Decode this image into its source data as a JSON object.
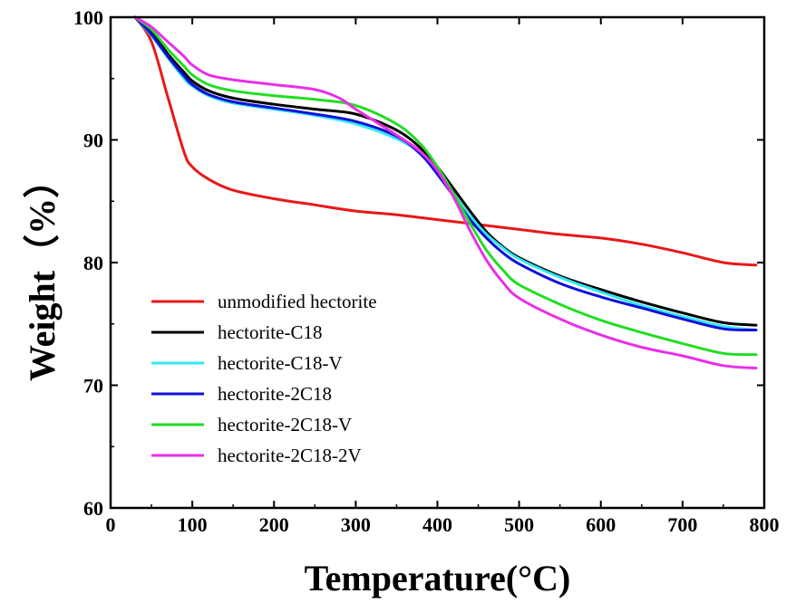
{
  "chart_data": {
    "type": "line",
    "title": "",
    "xlabel": "Temperature(°C)",
    "ylabel": "Weight（%）",
    "xlim": [
      0,
      800
    ],
    "ylim": [
      60,
      100
    ],
    "x_ticks": [
      0,
      100,
      200,
      300,
      400,
      500,
      600,
      700,
      800
    ],
    "y_ticks": [
      60,
      70,
      80,
      90,
      100
    ],
    "grid": false,
    "legend_position": "bottom-left",
    "series": [
      {
        "name": "unmodified hectorite",
        "color": "#e81818",
        "points": [
          [
            30,
            100
          ],
          [
            50,
            98
          ],
          [
            70,
            93.5
          ],
          [
            90,
            89
          ],
          [
            100,
            87.8
          ],
          [
            120,
            86.8
          ],
          [
            150,
            85.9
          ],
          [
            200,
            85.2
          ],
          [
            250,
            84.7
          ],
          [
            300,
            84.2
          ],
          [
            350,
            83.9
          ],
          [
            400,
            83.5
          ],
          [
            450,
            83.1
          ],
          [
            500,
            82.7
          ],
          [
            550,
            82.3
          ],
          [
            600,
            82
          ],
          [
            650,
            81.5
          ],
          [
            700,
            80.8
          ],
          [
            750,
            80
          ],
          [
            790,
            79.8
          ]
        ]
      },
      {
        "name": "hectorite-C18",
        "color": "#000000",
        "points": [
          [
            30,
            100
          ],
          [
            50,
            98.8
          ],
          [
            70,
            97
          ],
          [
            90,
            95.5
          ],
          [
            100,
            94.8
          ],
          [
            120,
            94
          ],
          [
            150,
            93.4
          ],
          [
            200,
            92.9
          ],
          [
            250,
            92.5
          ],
          [
            300,
            92.1
          ],
          [
            350,
            90.8
          ],
          [
            380,
            89.3
          ],
          [
            400,
            87.8
          ],
          [
            420,
            86
          ],
          [
            440,
            84.2
          ],
          [
            460,
            82.5
          ],
          [
            480,
            81.3
          ],
          [
            500,
            80.4
          ],
          [
            550,
            78.9
          ],
          [
            600,
            77.8
          ],
          [
            650,
            76.8
          ],
          [
            700,
            75.9
          ],
          [
            750,
            75.1
          ],
          [
            790,
            74.9
          ]
        ]
      },
      {
        "name": "hectorite-C18-V",
        "color": "#33e8f2",
        "points": [
          [
            30,
            100
          ],
          [
            50,
            98.5
          ],
          [
            70,
            96.7
          ],
          [
            90,
            95
          ],
          [
            100,
            94.4
          ],
          [
            120,
            93.6
          ],
          [
            150,
            93
          ],
          [
            200,
            92.5
          ],
          [
            250,
            92
          ],
          [
            300,
            91.3
          ],
          [
            350,
            90.1
          ],
          [
            380,
            88.9
          ],
          [
            400,
            87.4
          ],
          [
            420,
            85.6
          ],
          [
            440,
            83.8
          ],
          [
            460,
            82.3
          ],
          [
            480,
            81.2
          ],
          [
            500,
            80.3
          ],
          [
            550,
            78.8
          ],
          [
            600,
            77.6
          ],
          [
            650,
            76.5
          ],
          [
            700,
            75.6
          ],
          [
            750,
            74.8
          ],
          [
            790,
            74.5
          ]
        ]
      },
      {
        "name": "hectorite-2C18",
        "color": "#1010d8",
        "points": [
          [
            30,
            100
          ],
          [
            50,
            98.6
          ],
          [
            70,
            96.8
          ],
          [
            90,
            95.2
          ],
          [
            100,
            94.5
          ],
          [
            120,
            93.7
          ],
          [
            150,
            93.1
          ],
          [
            200,
            92.6
          ],
          [
            250,
            92.1
          ],
          [
            300,
            91.5
          ],
          [
            350,
            90.3
          ],
          [
            380,
            88.8
          ],
          [
            400,
            87.2
          ],
          [
            420,
            85.4
          ],
          [
            440,
            83.5
          ],
          [
            460,
            82
          ],
          [
            480,
            80.8
          ],
          [
            500,
            79.9
          ],
          [
            550,
            78.3
          ],
          [
            600,
            77.2
          ],
          [
            650,
            76.3
          ],
          [
            700,
            75.4
          ],
          [
            750,
            74.6
          ],
          [
            790,
            74.5
          ]
        ]
      },
      {
        "name": "hectorite-2C18-V",
        "color": "#22dd22",
        "points": [
          [
            30,
            100
          ],
          [
            50,
            99
          ],
          [
            70,
            97.4
          ],
          [
            90,
            96
          ],
          [
            100,
            95.3
          ],
          [
            120,
            94.5
          ],
          [
            150,
            94
          ],
          [
            200,
            93.6
          ],
          [
            250,
            93.3
          ],
          [
            300,
            92.8
          ],
          [
            350,
            91.3
          ],
          [
            380,
            89.6
          ],
          [
            400,
            87.8
          ],
          [
            420,
            85.6
          ],
          [
            440,
            83.2
          ],
          [
            460,
            81
          ],
          [
            480,
            79.4
          ],
          [
            500,
            78.2
          ],
          [
            550,
            76.6
          ],
          [
            600,
            75.3
          ],
          [
            650,
            74.3
          ],
          [
            700,
            73.4
          ],
          [
            750,
            72.6
          ],
          [
            790,
            72.5
          ]
        ]
      },
      {
        "name": "hectorite-2C18-2V",
        "color": "#e830e8",
        "points": [
          [
            30,
            100
          ],
          [
            50,
            99.2
          ],
          [
            70,
            98
          ],
          [
            90,
            96.8
          ],
          [
            100,
            96.1
          ],
          [
            120,
            95.3
          ],
          [
            150,
            94.9
          ],
          [
            200,
            94.5
          ],
          [
            250,
            94.1
          ],
          [
            280,
            93.4
          ],
          [
            300,
            92.5
          ],
          [
            350,
            90.4
          ],
          [
            380,
            89
          ],
          [
            400,
            87.5
          ],
          [
            420,
            85.3
          ],
          [
            440,
            82.6
          ],
          [
            460,
            80.2
          ],
          [
            480,
            78.4
          ],
          [
            500,
            77.1
          ],
          [
            550,
            75.4
          ],
          [
            600,
            74.1
          ],
          [
            650,
            73.1
          ],
          [
            700,
            72.4
          ],
          [
            750,
            71.6
          ],
          [
            790,
            71.4
          ]
        ]
      }
    ]
  }
}
